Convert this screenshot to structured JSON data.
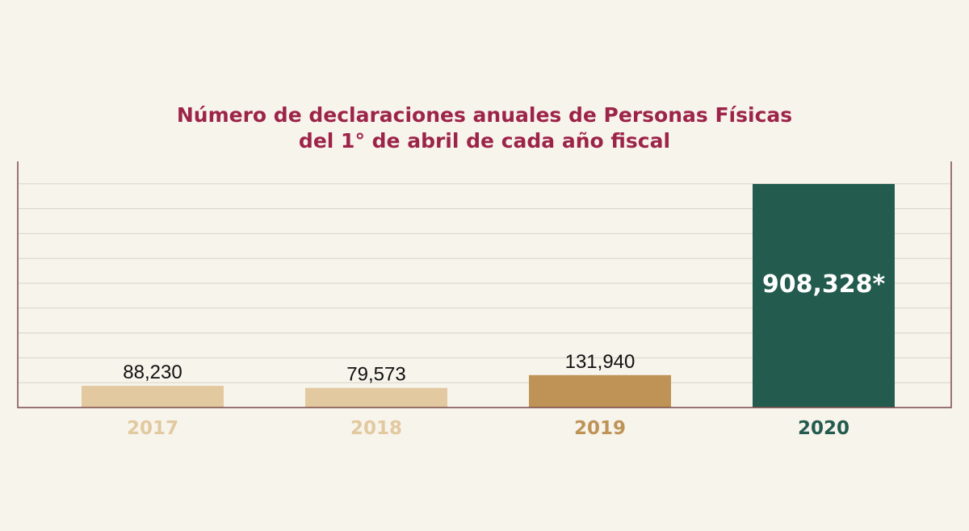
{
  "chart_data": {
    "type": "bar",
    "title": "Número de declaraciones anuales de Personas Físicas",
    "subtitle": "del 1° de abril de cada año fiscal",
    "xlabel": "",
    "ylabel": "",
    "categories": [
      "2017",
      "2018",
      "2019",
      "2020"
    ],
    "values": [
      88230,
      79573,
      131940,
      908328
    ],
    "value_labels": [
      "88,230",
      "79,573",
      "131,940",
      "908,328*"
    ],
    "ylim": [
      0,
      1000000
    ],
    "grid": true,
    "legend": "none",
    "colors": {
      "bars": [
        "#e2c99f",
        "#e2c99f",
        "#bf9356",
        "#235b4e"
      ],
      "category_labels": [
        "#e2c99f",
        "#e2c99f",
        "#bf9356",
        "#235b4e"
      ],
      "title": "#9d2449"
    }
  }
}
